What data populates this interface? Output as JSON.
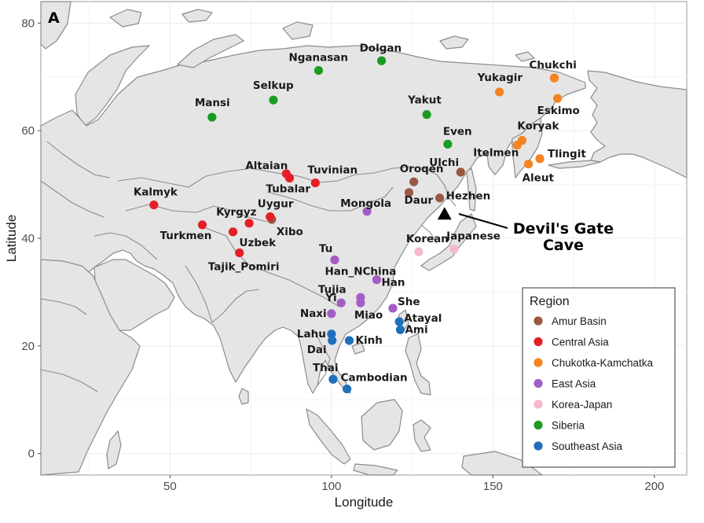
{
  "panel_label": "A",
  "axes": {
    "xlabel": "Longitude",
    "ylabel": "Latitude",
    "xticks": [
      "50",
      "100",
      "150",
      "200"
    ],
    "yticks": [
      "0",
      "20",
      "40",
      "60",
      "80"
    ]
  },
  "legend": {
    "title": "Region",
    "placement": "bottom-right",
    "items": [
      {
        "name": "Amur Basin",
        "color": "#9a5743"
      },
      {
        "name": "Central Asia",
        "color": "#e41f26"
      },
      {
        "name": "Chukotka-Kamchatka",
        "color": "#f5831f"
      },
      {
        "name": "East Asia",
        "color": "#a35ec4"
      },
      {
        "name": "Korea-Japan",
        "color": "#f6b8cc"
      },
      {
        "name": "Siberia",
        "color": "#1a9c24"
      },
      {
        "name": "Southeast Asia",
        "color": "#1f70b8"
      }
    ]
  },
  "cave": {
    "label_line1": "Devil's Gate",
    "label_line2": "Cave",
    "lon": 135,
    "lat": 44.5
  },
  "chart_data": {
    "type": "scatter",
    "xlim": [
      10,
      210
    ],
    "ylim": [
      -4,
      84
    ],
    "grid": true,
    "points": [
      {
        "label": "Oroqen",
        "lon": 125.5,
        "lat": 50.5,
        "region": "Amur Basin"
      },
      {
        "label": "Daur",
        "lon": 124,
        "lat": 48.5,
        "region": "Amur Basin"
      },
      {
        "label": "Hezhen",
        "lon": 133.5,
        "lat": 47.5,
        "region": "Amur Basin"
      },
      {
        "label": "Ulchi",
        "lon": 140,
        "lat": 52.3,
        "region": "Amur Basin"
      },
      {
        "label": "Xibo",
        "lon": 81.5,
        "lat": 43.5,
        "region": "Amur Basin"
      },
      {
        "label": "Altaian",
        "lon": 86,
        "lat": 52,
        "region": "Central Asia"
      },
      {
        "label": "Tubalar",
        "lon": 87,
        "lat": 51.2,
        "region": "Central Asia"
      },
      {
        "label": "Tuvinian",
        "lon": 95,
        "lat": 50.3,
        "region": "Central Asia"
      },
      {
        "label": "Kalmyk",
        "lon": 45,
        "lat": 46.2,
        "region": "Central Asia"
      },
      {
        "label": "Kyrgyz",
        "lon": 74.5,
        "lat": 42.8,
        "region": "Central Asia"
      },
      {
        "label": "Uygur",
        "lon": 81,
        "lat": 44,
        "region": "Central Asia"
      },
      {
        "label": "Turkmen",
        "lon": 60,
        "lat": 42.5,
        "region": "Central Asia"
      },
      {
        "label": "Uzbek",
        "lon": 69.5,
        "lat": 41.2,
        "region": "Central Asia"
      },
      {
        "label": "Tajik_Pomiri",
        "lon": 71.5,
        "lat": 37.3,
        "region": "Central Asia"
      },
      {
        "label": "Chukchi",
        "lon": 169,
        "lat": 69.8,
        "region": "Chukotka-Kamchatka"
      },
      {
        "label": "Yukagir",
        "lon": 152,
        "lat": 67.2,
        "region": "Chukotka-Kamchatka"
      },
      {
        "label": "Eskimo",
        "lon": 170,
        "lat": 66,
        "region": "Chukotka-Kamchatka"
      },
      {
        "label": "Koryak",
        "lon": 159,
        "lat": 58.2,
        "region": "Chukotka-Kamchatka"
      },
      {
        "label": "Itelmen",
        "lon": 157.5,
        "lat": 57.3,
        "region": "Chukotka-Kamchatka"
      },
      {
        "label": "Tlingit",
        "lon": 164.5,
        "lat": 54.8,
        "region": "Chukotka-Kamchatka"
      },
      {
        "label": "Aleut",
        "lon": 161,
        "lat": 53.8,
        "region": "Chukotka-Kamchatka"
      },
      {
        "label": "Mongola",
        "lon": 111,
        "lat": 45,
        "region": "East Asia"
      },
      {
        "label": "Tu",
        "lon": 101,
        "lat": 36,
        "region": "East Asia"
      },
      {
        "label": "Han_NChina",
        "lon": 114,
        "lat": 32.3,
        "region": "East Asia"
      },
      {
        "label": "Han",
        "lon": 114,
        "lat": 32.3,
        "region": "East Asia"
      },
      {
        "label": "Tujia",
        "lon": 109,
        "lat": 29,
        "region": "East Asia"
      },
      {
        "label": "Yi",
        "lon": 103,
        "lat": 28,
        "region": "East Asia"
      },
      {
        "label": "Miao",
        "lon": 109,
        "lat": 28,
        "region": "East Asia"
      },
      {
        "label": "Naxi",
        "lon": 100,
        "lat": 26,
        "region": "East Asia"
      },
      {
        "label": "She",
        "lon": 119,
        "lat": 27,
        "region": "East Asia"
      },
      {
        "label": "Korean",
        "lon": 127,
        "lat": 37.5,
        "region": "Korea-Japan"
      },
      {
        "label": "Japanese",
        "lon": 138,
        "lat": 38,
        "region": "Korea-Japan"
      },
      {
        "label": "Dolgan",
        "lon": 115.5,
        "lat": 73,
        "region": "Siberia"
      },
      {
        "label": "Nganasan",
        "lon": 96,
        "lat": 71.2,
        "region": "Siberia"
      },
      {
        "label": "Selkup",
        "lon": 82,
        "lat": 65.7,
        "region": "Siberia"
      },
      {
        "label": "Mansi",
        "lon": 63,
        "lat": 62.5,
        "region": "Siberia"
      },
      {
        "label": "Yakut",
        "lon": 129.5,
        "lat": 63,
        "region": "Siberia"
      },
      {
        "label": "Even",
        "lon": 136,
        "lat": 57.5,
        "region": "Siberia"
      },
      {
        "label": "Atayal",
        "lon": 121,
        "lat": 24.5,
        "region": "Southeast Asia"
      },
      {
        "label": "Ami",
        "lon": 121.3,
        "lat": 23,
        "region": "Southeast Asia"
      },
      {
        "label": "Lahu",
        "lon": 100,
        "lat": 22.2,
        "region": "Southeast Asia"
      },
      {
        "label": "Dai",
        "lon": 100.2,
        "lat": 21,
        "region": "Southeast Asia"
      },
      {
        "label": "Kinh",
        "lon": 105.5,
        "lat": 21,
        "region": "Southeast Asia"
      },
      {
        "label": "Thai",
        "lon": 100.5,
        "lat": 13.8,
        "region": "Southeast Asia"
      },
      {
        "label": "Cambodian",
        "lon": 104.8,
        "lat": 12,
        "region": "Southeast Asia"
      }
    ]
  }
}
